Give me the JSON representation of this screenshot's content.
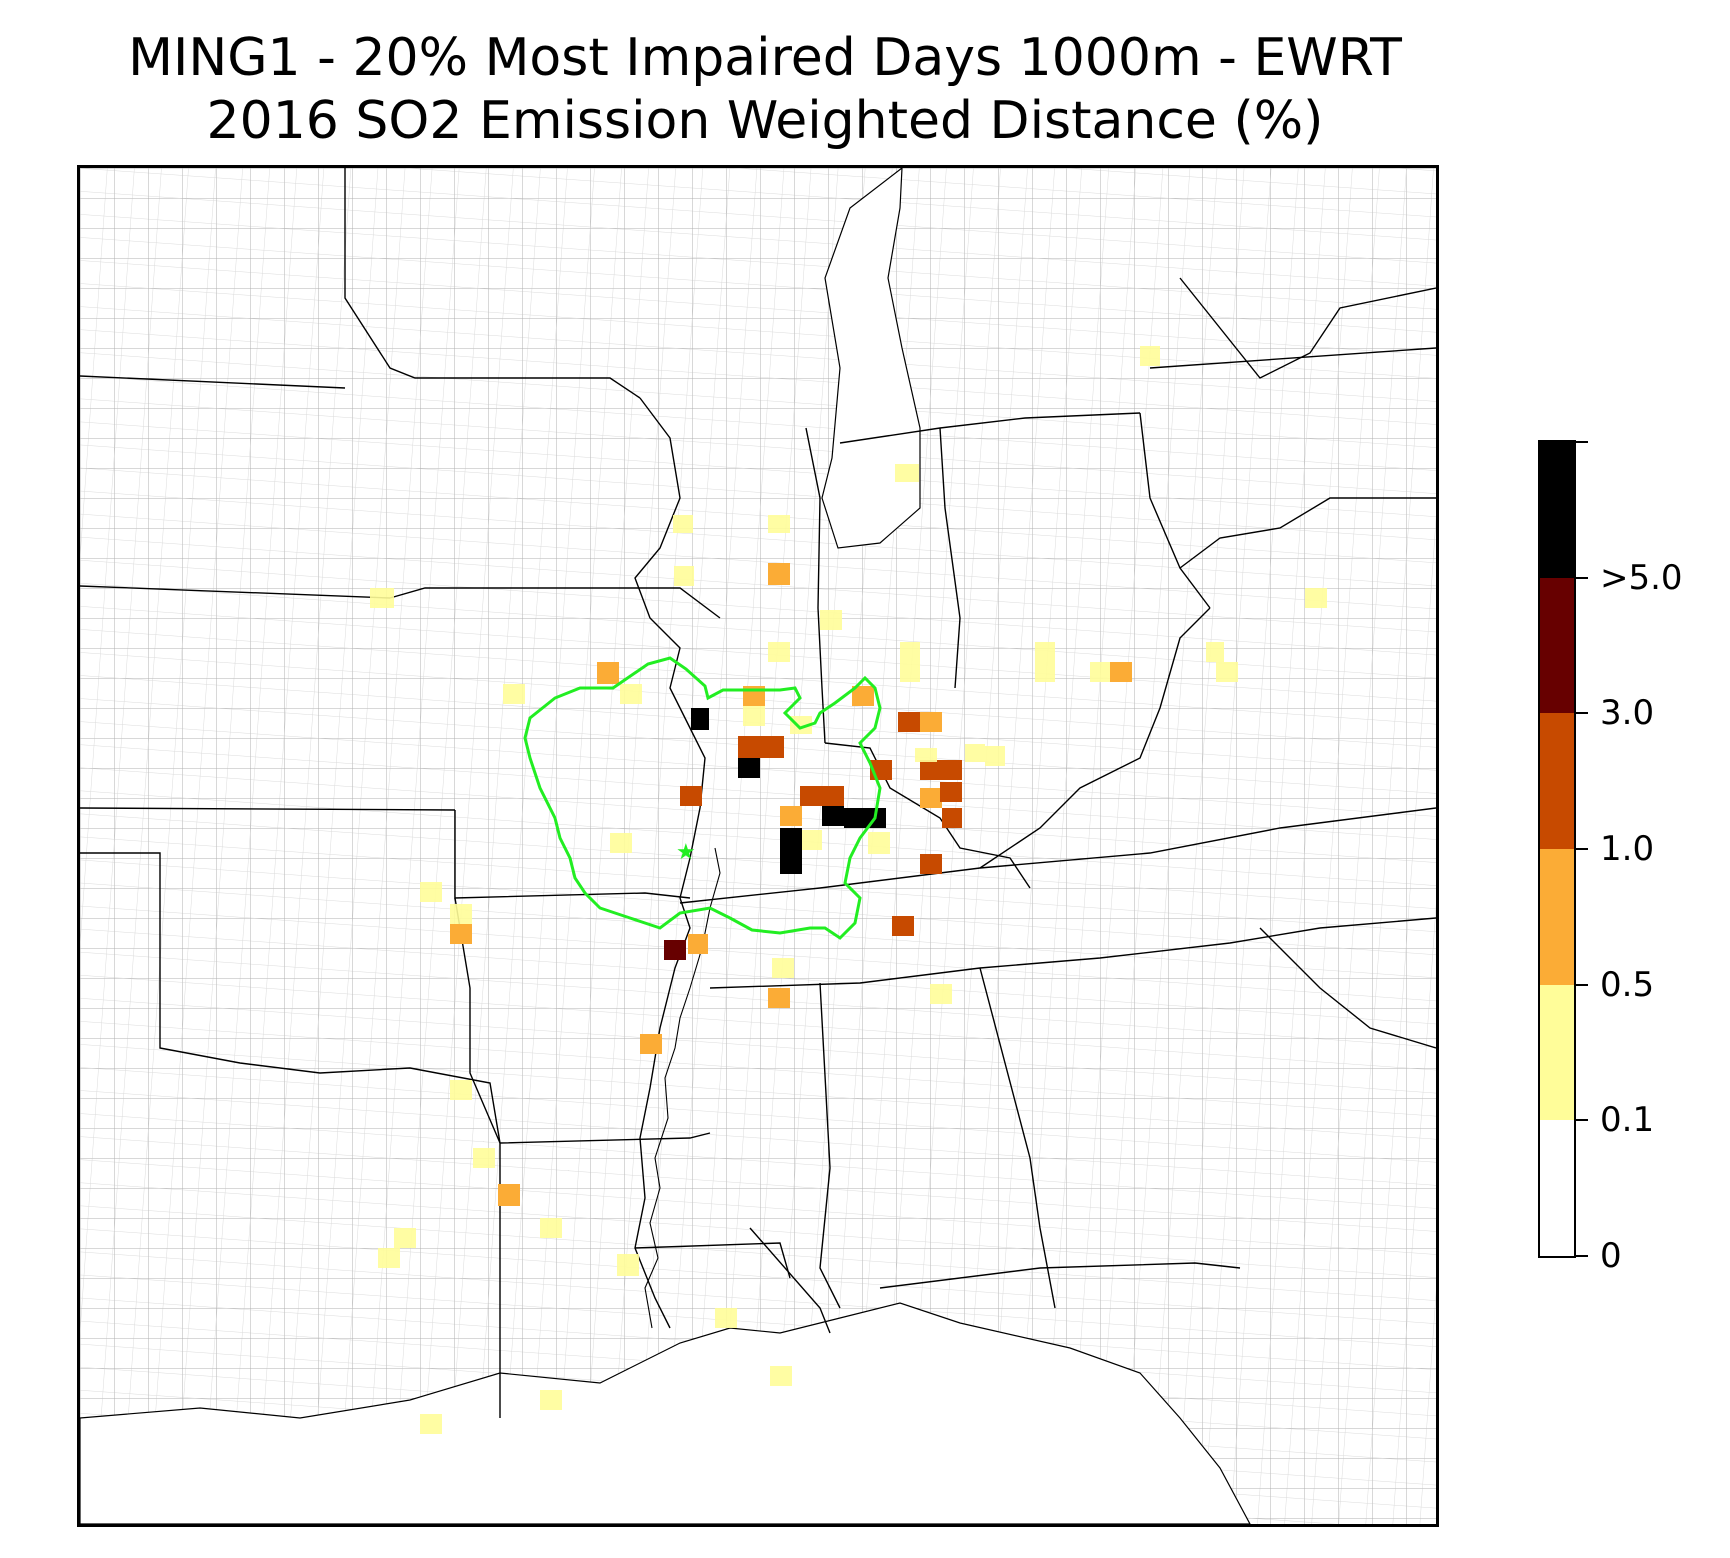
{
  "title": {
    "line1": "MING1 - 20% Most Impaired Days 1000m - EWRT",
    "line2": "2016 SO2 Emission Weighted Distance (%)"
  },
  "colorbar": {
    "bands": [
      {
        "range": "0-0.1",
        "color": "#ffffff"
      },
      {
        "range": "0.1-0.5",
        "color": "#fffd99"
      },
      {
        "range": "0.5-1.0",
        "color": "#fbac36"
      },
      {
        "range": "1.0-3.0",
        "color": "#c74a00"
      },
      {
        "range": "3.0-5.0",
        "color": "#670000"
      },
      {
        "range": ">5.0",
        "color": "#000000"
      }
    ],
    "tick_labels": [
      "0",
      "0.1",
      "0.5",
      "1.0",
      "3.0",
      ">5.0"
    ]
  },
  "map": {
    "station_marker": "green-star-icon",
    "contour_color": "#22ee22",
    "background": "#ffffff"
  }
}
